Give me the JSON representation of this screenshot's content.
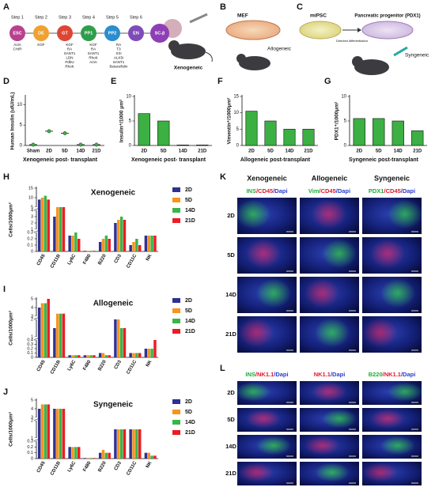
{
  "panel_labels": [
    "A",
    "B",
    "C",
    "D",
    "E",
    "F",
    "G",
    "H",
    "I",
    "J",
    "K",
    "L"
  ],
  "panel_a": {
    "steps": [
      "Step 1",
      "Step 2",
      "Step 3",
      "Step 4",
      "Step 5",
      "Step 6"
    ],
    "stages": [
      {
        "name": "ESC",
        "color": "#b8418e"
      },
      {
        "name": "DE",
        "color": "#efa131"
      },
      {
        "name": "GT",
        "color": "#dd4636"
      },
      {
        "name": "PP1",
        "color": "#2f9e4a"
      },
      {
        "name": "PP2",
        "color": "#2a8dcf"
      },
      {
        "name": "EN",
        "color": "#7d4cb9"
      },
      {
        "name": "SC-β",
        "color": "#8e3fb5"
      }
    ],
    "factors": [
      [
        "ActA",
        "CHIR"
      ],
      [
        "KGF"
      ],
      [
        "KGF",
        "RA",
        "SANT1",
        "LDN",
        "PdbU",
        "RhoK"
      ],
      [
        "KGF",
        "RA",
        "SANT1",
        "RhoK",
        "ActA"
      ],
      [
        "RA",
        "T3",
        "XXI",
        "ALK5i",
        "SANT1",
        "Betacellulin"
      ]
    ],
    "label": "Xenogeneic"
  },
  "panel_b": {
    "cells": "MEF",
    "label": "Allogeneic"
  },
  "panel_c": {
    "cells": "miPSC",
    "progenitor": "Pancreatic progenitor (PDX1)",
    "arrow": "Directed differentiation",
    "label": "Syngeneic"
  },
  "chart_data": [
    {
      "type": "dot",
      "ylabel": "Human Insulin (uIU/mL)",
      "xlabel": "Xenogeneic post- transplant",
      "categories": [
        "Sham",
        "2D",
        "5D",
        "14D",
        "21D"
      ],
      "values": [
        0.2,
        3.5,
        3,
        0.2,
        0.2
      ],
      "color": "#3cb043",
      "ylim": [
        0,
        12
      ],
      "yticks": [
        0,
        5,
        10
      ]
    },
    {
      "type": "bar",
      "ylabel": "Insulin⁺/1000 μm²",
      "xlabel": "Xenogeneic post- transplant",
      "categories": [
        "2D",
        "5D",
        "14D",
        "21D"
      ],
      "values": [
        6.5,
        5,
        0.1,
        0.1
      ],
      "color": "#3cb043",
      "ylim": [
        0,
        10
      ],
      "yticks": [
        0,
        5,
        10
      ]
    },
    {
      "type": "bar",
      "ylabel": "Vimentin⁺/1000μm²",
      "xlabel": "Allogeneic post-transplant",
      "categories": [
        "2D",
        "5D",
        "14D",
        "21D"
      ],
      "values": [
        10.5,
        7.5,
        5,
        5
      ],
      "color": "#3cb043",
      "ylim": [
        0,
        15
      ],
      "yticks": [
        0,
        5,
        10,
        15
      ]
    },
    {
      "type": "bar",
      "ylabel": "PDX1⁺/1000μm²",
      "xlabel": "Syngeneic post-transplant",
      "categories": [
        "2D",
        "5D",
        "14D",
        "21D"
      ],
      "values": [
        5.5,
        5.5,
        5,
        3
      ],
      "color": "#3cb043",
      "ylim": [
        0,
        10
      ],
      "yticks": [
        0,
        5,
        10
      ]
    },
    {
      "type": "grouped",
      "title": "Xenogeneic",
      "ylabel": "Cells/1000μm²",
      "categories": [
        "CD45",
        "CD11B",
        "Ly6C",
        "F480",
        "B220",
        "CD3",
        "CD11C",
        "NK"
      ],
      "series": [
        {
          "name": "2D",
          "color": "#2e3192",
          "values": [
            9,
            3,
            0.25,
            0.01,
            0.15,
            2,
            0.1,
            0.25
          ]
        },
        {
          "name": "5D",
          "color": "#f7941d",
          "values": [
            10,
            5,
            0.25,
            0.01,
            0.2,
            2.5,
            0.15,
            0.25
          ]
        },
        {
          "name": "14D",
          "color": "#39b54a",
          "values": [
            11,
            5,
            0.3,
            0.01,
            0.25,
            3,
            0.2,
            0.25
          ]
        },
        {
          "name": "21D",
          "color": "#ed1c24",
          "values": [
            9,
            5,
            0.2,
            0.01,
            0.2,
            2.5,
            0.1,
            0.25
          ]
        }
      ],
      "ylim": [
        0,
        15
      ],
      "ybreaks": [
        [
          0,
          0.3
        ],
        [
          1,
          4
        ],
        [
          5,
          15
        ]
      ],
      "yticks": [
        0,
        0.1,
        0.2,
        0.3,
        1,
        2,
        3,
        4,
        5,
        10,
        15
      ]
    },
    {
      "type": "grouped",
      "title": "Allogeneic",
      "ylabel": "Cells/1000μm²",
      "categories": [
        "CD45",
        "CD11B",
        "Ly6C",
        "F480",
        "B220",
        "CD3",
        "CD11C",
        "NK"
      ],
      "series": [
        {
          "name": "2D",
          "color": "#2e3192",
          "values": [
            4,
            1.5,
            0.05,
            0.05,
            0.1,
            2,
            0.1,
            0.2
          ]
        },
        {
          "name": "5D",
          "color": "#f7941d",
          "values": [
            4.5,
            3.3,
            0.05,
            0.05,
            0.1,
            2,
            0.1,
            0.2
          ]
        },
        {
          "name": "14D",
          "color": "#39b54a",
          "values": [
            4.5,
            3.3,
            0.05,
            0.05,
            0.05,
            1.5,
            0.1,
            0.2
          ]
        },
        {
          "name": "21D",
          "color": "#ed1c24",
          "values": [
            5,
            3.3,
            0.05,
            0.05,
            0.05,
            1.5,
            0.1,
            0.4
          ]
        }
      ],
      "ylim": [
        0,
        5
      ],
      "ybreaks": [
        [
          0,
          0.4
        ],
        [
          1,
          2
        ],
        [
          3,
          5
        ]
      ],
      "yticks": [
        0,
        0.1,
        0.2,
        0.3,
        0.4,
        1,
        2,
        3,
        4,
        5
      ]
    },
    {
      "type": "grouped",
      "title": "Syngeneic",
      "ylabel": "Cells/1000μm²",
      "categories": [
        "CD45",
        "CD11B",
        "Ly6C",
        "F480",
        "B220",
        "CD3",
        "CD11C",
        "NK"
      ],
      "series": [
        {
          "name": "2D",
          "color": "#2e3192",
          "values": [
            4,
            4,
            0.2,
            0.01,
            0.1,
            1.5,
            1.5,
            0.1
          ]
        },
        {
          "name": "5D",
          "color": "#f7941d",
          "values": [
            4.5,
            4,
            0.2,
            0.01,
            0.15,
            1.5,
            1.5,
            0.1
          ]
        },
        {
          "name": "14D",
          "color": "#39b54a",
          "values": [
            4.5,
            4,
            0.2,
            0.01,
            0.1,
            1.5,
            1.5,
            0.05
          ]
        },
        {
          "name": "21D",
          "color": "#ed1c24",
          "values": [
            4.5,
            4,
            0.2,
            0.01,
            0.1,
            1.5,
            1.5,
            0.05
          ]
        }
      ],
      "ylim": [
        0,
        5
      ],
      "ybreaks": [
        [
          0,
          0.3
        ],
        [
          1,
          2
        ],
        [
          3,
          5
        ]
      ],
      "yticks": [
        0,
        0.1,
        0.2,
        0.3,
        1,
        2,
        3,
        4,
        5
      ]
    }
  ],
  "panel_k": {
    "columns": [
      "Xenogeneic",
      "Allogeneic",
      "Syngeneic"
    ],
    "stains": [
      [
        {
          "text": "INS",
          "color": "#1faa3a"
        },
        {
          "text": "/CD45",
          "color": "#e0192a"
        },
        {
          "text": "/Dapi",
          "color": "#2a3bd0"
        }
      ],
      [
        {
          "text": "Vim",
          "color": "#1faa3a"
        },
        {
          "text": "/CD45",
          "color": "#e0192a"
        },
        {
          "text": "/Dapi",
          "color": "#2a3bd0"
        }
      ],
      [
        {
          "text": "PDX1",
          "color": "#1faa3a"
        },
        {
          "text": "/CD45",
          "color": "#e0192a"
        },
        {
          "text": "/Dapi",
          "color": "#2a3bd0"
        }
      ]
    ],
    "rows": [
      "2D",
      "5D",
      "14D",
      "21D"
    ]
  },
  "panel_l": {
    "stains": [
      [
        {
          "text": "INS",
          "color": "#1faa3a"
        },
        {
          "text": "/NK1.1",
          "color": "#e0192a"
        },
        {
          "text": "/Dapi",
          "color": "#2a3bd0"
        }
      ],
      [
        {
          "text": "NK1.1",
          "color": "#e0192a"
        },
        {
          "text": "/Dapi",
          "color": "#2a3bd0"
        }
      ],
      [
        {
          "text": "B220",
          "color": "#1faa3a"
        },
        {
          "text": "/NK1.1",
          "color": "#e0192a"
        },
        {
          "text": "/Dapi",
          "color": "#2a3bd0"
        }
      ]
    ],
    "rows": [
      "2D",
      "5D",
      "14D",
      "21D"
    ]
  }
}
